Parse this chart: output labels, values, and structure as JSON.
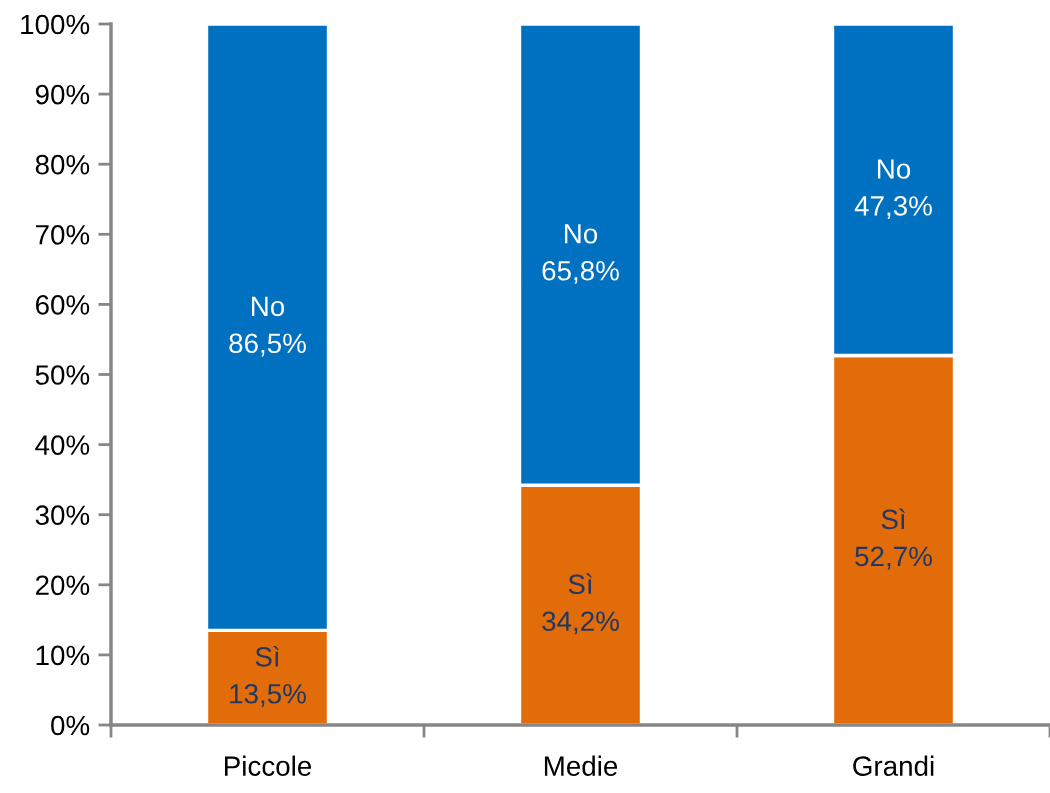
{
  "chart_data": {
    "type": "bar",
    "stacked": true,
    "categories": [
      "Piccole",
      "Medie",
      "Grandi"
    ],
    "series": [
      {
        "name": "Sì",
        "color": "#e36c0a",
        "values": [
          13.5,
          34.2,
          52.7
        ],
        "value_labels": [
          "13,5%",
          "34,2%",
          "52,7%"
        ]
      },
      {
        "name": "No",
        "color": "#0070c0",
        "values": [
          86.5,
          65.8,
          47.3
        ],
        "value_labels": [
          "86,5%",
          "65,8%",
          "47,3%"
        ]
      }
    ],
    "ylim": [
      0,
      100
    ],
    "yticks": [
      {
        "value": 0,
        "label": "0%"
      },
      {
        "value": 10,
        "label": "10%"
      },
      {
        "value": 20,
        "label": "20%"
      },
      {
        "value": 30,
        "label": "30%"
      },
      {
        "value": 40,
        "label": "40%"
      },
      {
        "value": 50,
        "label": "50%"
      },
      {
        "value": 60,
        "label": "60%"
      },
      {
        "value": 70,
        "label": "70%"
      },
      {
        "value": 80,
        "label": "80%"
      },
      {
        "value": 90,
        "label": "90%"
      },
      {
        "value": 100,
        "label": "100%"
      }
    ],
    "grid": false,
    "legend": false
  }
}
